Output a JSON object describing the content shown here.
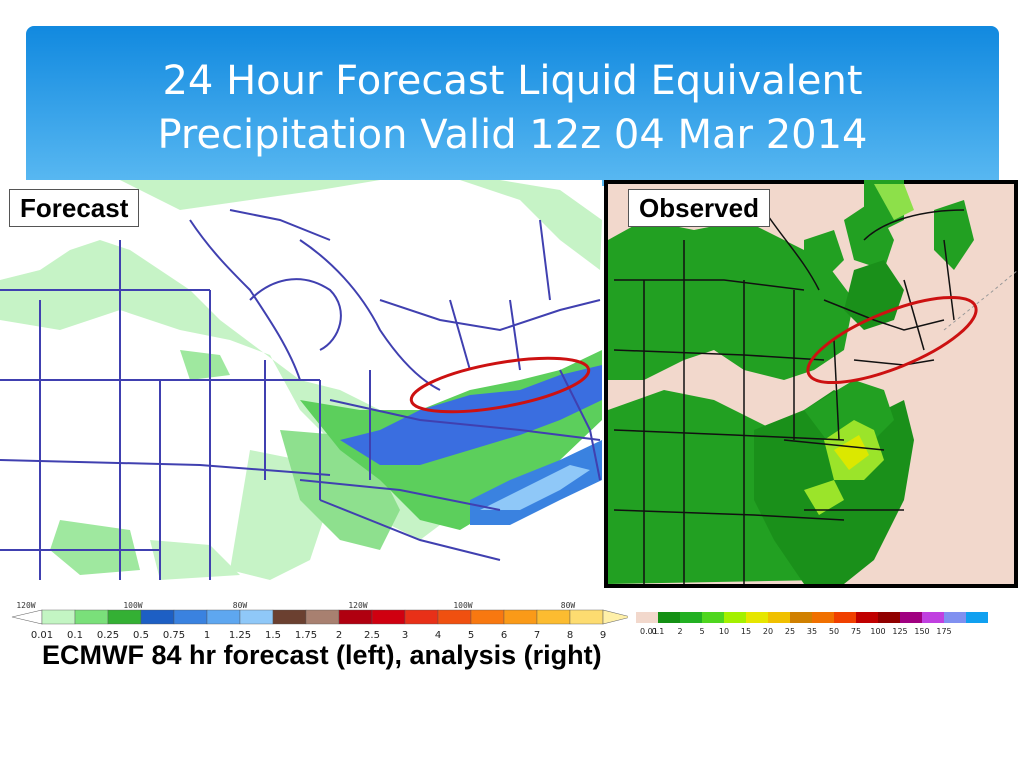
{
  "slide": {
    "title_line1": "24 Hour Forecast Liquid Equivalent",
    "title_line2": "Precipitation Valid 12z 04 Mar 2014",
    "caption": "ECMWF 84 hr forecast (left), analysis (right)"
  },
  "panels": {
    "forecast_label": "Forecast",
    "observed_label": "Observed"
  },
  "forecast_scale": {
    "longitudes": [
      "120W",
      "100W",
      "80W",
      "120W",
      "100W",
      "80W"
    ],
    "values": [
      "0.01",
      "0.1",
      "0.25",
      "0.5",
      "0.75",
      "1",
      "1.25",
      "1.5",
      "1.75",
      "2",
      "2.5",
      "3",
      "4",
      "5",
      "6",
      "7",
      "8",
      "9"
    ],
    "colors": [
      "#c3f5c3",
      "#7ae07a",
      "#34b034",
      "#1d5fc4",
      "#3a82e0",
      "#5ea7f0",
      "#8fc8f8",
      "#6b4030",
      "#a88070",
      "#b00010",
      "#d00010",
      "#e83018",
      "#f05010",
      "#f87810",
      "#fa9a18",
      "#fcbc30",
      "#fddc70"
    ]
  },
  "observed_scale": {
    "values": [
      "0.01",
      "0.1",
      "2",
      "5",
      "10",
      "15",
      "20",
      "25",
      "35",
      "50",
      "75",
      "100",
      "125",
      "150",
      "175"
    ],
    "colors": [
      "#f2d8cc",
      "#149014",
      "#22b022",
      "#4fd61f",
      "#a4f000",
      "#e6e600",
      "#f0c000",
      "#d08000",
      "#f07000",
      "#f04000",
      "#c00000",
      "#900000",
      "#a00080",
      "#c040e0",
      "#8090f0",
      "#10a0f0"
    ]
  }
}
